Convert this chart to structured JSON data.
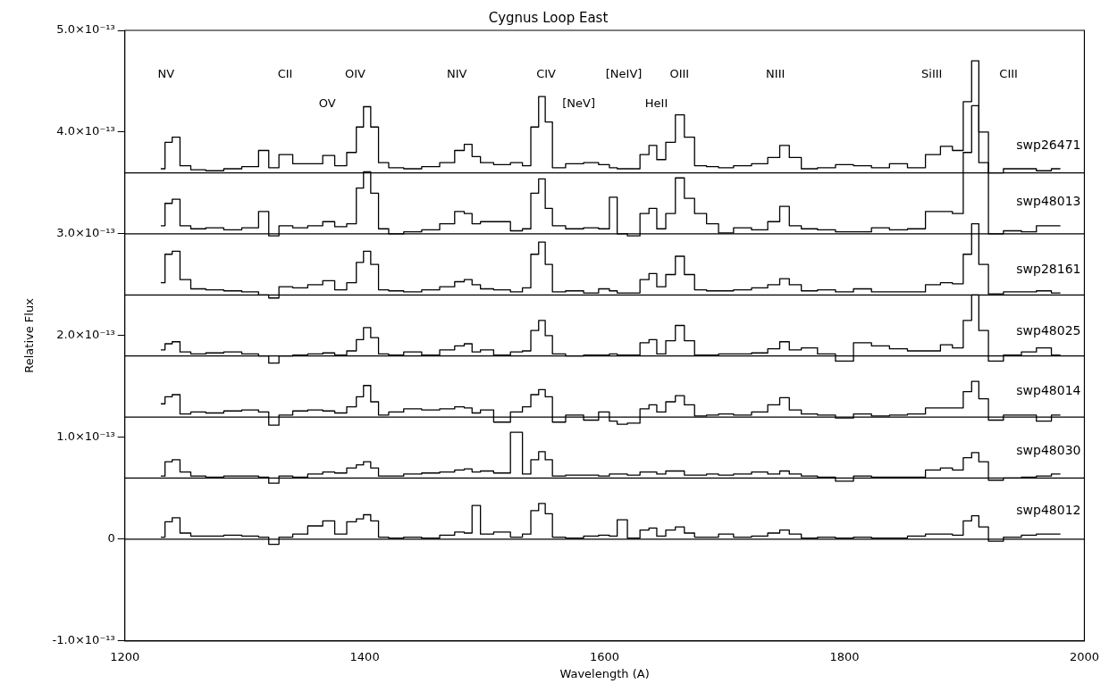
{
  "chart_data": {
    "type": "step",
    "title": "Cygnus Loop East",
    "xlabel": "Wavelength (A)",
    "ylabel": "Relative Flux",
    "xlim": [
      1200,
      2000
    ],
    "xticks": [
      1200,
      1400,
      1600,
      1800,
      2000
    ],
    "ylim": [
      -1e-13,
      5e-13
    ],
    "yticks": [
      {
        "value": -1e-13,
        "label": "-1.0×10⁻¹³"
      },
      0,
      {
        "value": 1e-13,
        "label": "1.0×10⁻¹³"
      },
      {
        "value": 2e-13,
        "label": "2.0×10⁻¹³"
      },
      {
        "value": 3e-13,
        "label": "3.0×10⁻¹³"
      },
      {
        "value": 4e-13,
        "label": "4.0×10⁻¹³"
      },
      {
        "value": 5e-13,
        "label": "5.0×10⁻¹³"
      }
    ],
    "grid": false,
    "legend": false,
    "x": [
      1230,
      1237,
      1242,
      1250,
      1260,
      1275,
      1290,
      1305,
      1318,
      1322,
      1335,
      1345,
      1360,
      1370,
      1380,
      1390,
      1396,
      1402,
      1408,
      1415,
      1425,
      1440,
      1455,
      1470,
      1480,
      1486,
      1493,
      1500,
      1515,
      1528,
      1535,
      1542,
      1548,
      1553,
      1560,
      1575,
      1590,
      1600,
      1608,
      1613,
      1625,
      1634,
      1640,
      1647,
      1655,
      1663,
      1670,
      1680,
      1690,
      1700,
      1715,
      1730,
      1742,
      1750,
      1758,
      1770,
      1785,
      1800,
      1815,
      1830,
      1845,
      1860,
      1875,
      1885,
      1895,
      1903,
      1909,
      1915,
      1925,
      1940,
      1955,
      1965,
      1980
    ],
    "series": [
      {
        "name": "swp26471",
        "color": "#000000",
        "values": [
          3.64e-13,
          3.9e-13,
          3.95e-13,
          3.67e-13,
          3.63e-13,
          3.62e-13,
          3.64e-13,
          3.66e-13,
          3.82e-13,
          3.65e-13,
          3.78e-13,
          3.69e-13,
          3.69e-13,
          3.77e-13,
          3.67e-13,
          3.8e-13,
          4.05e-13,
          4.25e-13,
          4.05e-13,
          3.7e-13,
          3.65e-13,
          3.64e-13,
          3.66e-13,
          3.7e-13,
          3.82e-13,
          3.88e-13,
          3.76e-13,
          3.7e-13,
          3.68e-13,
          3.7e-13,
          3.67e-13,
          4.05e-13,
          4.35e-13,
          4.1e-13,
          3.65e-13,
          3.69e-13,
          3.7e-13,
          3.68e-13,
          3.65e-13,
          3.64e-13,
          3.64e-13,
          3.78e-13,
          3.87e-13,
          3.73e-13,
          3.9e-13,
          4.17e-13,
          3.95e-13,
          3.67e-13,
          3.66e-13,
          3.65e-13,
          3.67e-13,
          3.69e-13,
          3.75e-13,
          3.87e-13,
          3.75e-13,
          3.64e-13,
          3.65e-13,
          3.68e-13,
          3.67e-13,
          3.65e-13,
          3.69e-13,
          3.65e-13,
          3.78e-13,
          3.86e-13,
          3.82e-13,
          4.3e-13,
          4.7e-13,
          4e-13,
          3.6e-13,
          3.64e-13,
          3.64e-13,
          3.62e-13,
          3.64e-13
        ]
      },
      {
        "name": "swp48013",
        "color": "#000000",
        "values": [
          3.08e-13,
          3.3e-13,
          3.34e-13,
          3.08e-13,
          3.05e-13,
          3.06e-13,
          3.04e-13,
          3.06e-13,
          3.22e-13,
          2.98e-13,
          3.08e-13,
          3.06e-13,
          3.08e-13,
          3.12e-13,
          3.07e-13,
          3.1e-13,
          3.45e-13,
          3.61e-13,
          3.4e-13,
          3.05e-13,
          3e-13,
          3.02e-13,
          3.04e-13,
          3.1e-13,
          3.22e-13,
          3.2e-13,
          3.1e-13,
          3.12e-13,
          3.12e-13,
          3.03e-13,
          3.05e-13,
          3.4e-13,
          3.54e-13,
          3.25e-13,
          3.08e-13,
          3.05e-13,
          3.06e-13,
          3.05e-13,
          3.36e-13,
          3e-13,
          2.98e-13,
          3.2e-13,
          3.25e-13,
          3.05e-13,
          3.2e-13,
          3.55e-13,
          3.35e-13,
          3.2e-13,
          3.1e-13,
          3.01e-13,
          3.06e-13,
          3.04e-13,
          3.12e-13,
          3.27e-13,
          3.08e-13,
          3.05e-13,
          3.04e-13,
          3.02e-13,
          3.02e-13,
          3.06e-13,
          3.04e-13,
          3.05e-13,
          3.22e-13,
          3.22e-13,
          3.2e-13,
          3.8e-13,
          4.26e-13,
          3.7e-13,
          3e-13,
          3.03e-13,
          3.02e-13,
          3.08e-13,
          3.08e-13
        ]
      },
      {
        "name": "swp28161",
        "color": "#000000",
        "values": [
          2.52e-13,
          2.8e-13,
          2.83e-13,
          2.55e-13,
          2.46e-13,
          2.45e-13,
          2.44e-13,
          2.43e-13,
          2.4e-13,
          2.37e-13,
          2.48e-13,
          2.47e-13,
          2.5e-13,
          2.54e-13,
          2.45e-13,
          2.52e-13,
          2.72e-13,
          2.83e-13,
          2.7e-13,
          2.45e-13,
          2.44e-13,
          2.43e-13,
          2.45e-13,
          2.48e-13,
          2.53e-13,
          2.55e-13,
          2.5e-13,
          2.46e-13,
          2.45e-13,
          2.43e-13,
          2.47e-13,
          2.8e-13,
          2.92e-13,
          2.7e-13,
          2.43e-13,
          2.44e-13,
          2.42e-13,
          2.46e-13,
          2.44e-13,
          2.42e-13,
          2.42e-13,
          2.55e-13,
          2.61e-13,
          2.48e-13,
          2.6e-13,
          2.78e-13,
          2.6e-13,
          2.45e-13,
          2.44e-13,
          2.44e-13,
          2.45e-13,
          2.47e-13,
          2.5e-13,
          2.56e-13,
          2.5e-13,
          2.44e-13,
          2.45e-13,
          2.43e-13,
          2.46e-13,
          2.43e-13,
          2.43e-13,
          2.43e-13,
          2.5e-13,
          2.52e-13,
          2.51e-13,
          2.8e-13,
          3.1e-13,
          2.7e-13,
          2.41e-13,
          2.43e-13,
          2.43e-13,
          2.44e-13,
          2.42e-13
        ]
      },
      {
        "name": "swp48025",
        "color": "#000000",
        "values": [
          1.86e-13,
          1.92e-13,
          1.94e-13,
          1.84e-13,
          1.82e-13,
          1.83e-13,
          1.84e-13,
          1.82e-13,
          1.8e-13,
          1.73e-13,
          1.8e-13,
          1.81e-13,
          1.82e-13,
          1.83e-13,
          1.81e-13,
          1.85e-13,
          1.96e-13,
          2.08e-13,
          1.98e-13,
          1.82e-13,
          1.81e-13,
          1.84e-13,
          1.81e-13,
          1.86e-13,
          1.9e-13,
          1.92e-13,
          1.84e-13,
          1.86e-13,
          1.81e-13,
          1.84e-13,
          1.85e-13,
          2.05e-13,
          2.15e-13,
          2e-13,
          1.82e-13,
          1.8e-13,
          1.81e-13,
          1.81e-13,
          1.82e-13,
          1.81e-13,
          1.81e-13,
          1.93e-13,
          1.96e-13,
          1.82e-13,
          1.95e-13,
          2.1e-13,
          1.95e-13,
          1.81e-13,
          1.81e-13,
          1.82e-13,
          1.82e-13,
          1.83e-13,
          1.87e-13,
          1.94e-13,
          1.86e-13,
          1.88e-13,
          1.82e-13,
          1.75e-13,
          1.93e-13,
          1.9e-13,
          1.87e-13,
          1.85e-13,
          1.85e-13,
          1.91e-13,
          1.88e-13,
          2.15e-13,
          2.4e-13,
          2.05e-13,
          1.75e-13,
          1.81e-13,
          1.84e-13,
          1.88e-13,
          1.81e-13
        ]
      },
      {
        "name": "swp48014",
        "color": "#000000",
        "values": [
          1.33e-13,
          1.4e-13,
          1.42e-13,
          1.23e-13,
          1.25e-13,
          1.24e-13,
          1.26e-13,
          1.27e-13,
          1.25e-13,
          1.12e-13,
          1.22e-13,
          1.26e-13,
          1.27e-13,
          1.26e-13,
          1.24e-13,
          1.3e-13,
          1.4e-13,
          1.51e-13,
          1.35e-13,
          1.22e-13,
          1.25e-13,
          1.28e-13,
          1.27e-13,
          1.28e-13,
          1.3e-13,
          1.29e-13,
          1.24e-13,
          1.27e-13,
          1.15e-13,
          1.25e-13,
          1.3e-13,
          1.42e-13,
          1.47e-13,
          1.4e-13,
          1.15e-13,
          1.22e-13,
          1.17e-13,
          1.25e-13,
          1.16e-13,
          1.13e-13,
          1.14e-13,
          1.28e-13,
          1.32e-13,
          1.25e-13,
          1.35e-13,
          1.41e-13,
          1.32e-13,
          1.21e-13,
          1.22e-13,
          1.23e-13,
          1.22e-13,
          1.25e-13,
          1.32e-13,
          1.39e-13,
          1.27e-13,
          1.23e-13,
          1.22e-13,
          1.19e-13,
          1.23e-13,
          1.21e-13,
          1.22e-13,
          1.23e-13,
          1.29e-13,
          1.29e-13,
          1.29e-13,
          1.45e-13,
          1.55e-13,
          1.38e-13,
          1.17e-13,
          1.22e-13,
          1.22e-13,
          1.16e-13,
          1.22e-13
        ]
      },
      {
        "name": "swp48030",
        "color": "#000000",
        "values": [
          6.2e-14,
          7.6e-14,
          7.8e-14,
          6.6e-14,
          6.2e-14,
          6.1e-14,
          6.2e-14,
          6.2e-14,
          6.1e-14,
          5.5e-14,
          6.2e-14,
          6.1e-14,
          6.4e-14,
          6.6e-14,
          6.5e-14,
          7e-14,
          7.3e-14,
          7.6e-14,
          7e-14,
          6.2e-14,
          6.2e-14,
          6.4e-14,
          6.5e-14,
          6.6e-14,
          6.8e-14,
          6.9e-14,
          6.6e-14,
          6.7e-14,
          6.5e-14,
          1.05e-13,
          6.4e-14,
          7.8e-14,
          8.6e-14,
          7.8e-14,
          6.2e-14,
          6.3e-14,
          6.3e-14,
          6.2e-14,
          6.4e-14,
          6.4e-14,
          6.3e-14,
          6.6e-14,
          6.6e-14,
          6.4e-14,
          6.7e-14,
          6.7e-14,
          6.3e-14,
          6.3e-14,
          6.4e-14,
          6.3e-14,
          6.4e-14,
          6.6e-14,
          6.4e-14,
          6.7e-14,
          6.4e-14,
          6.2e-14,
          6.1e-14,
          5.7e-14,
          6.2e-14,
          6.1e-14,
          6.1e-14,
          6.1e-14,
          6.8e-14,
          7e-14,
          6.8e-14,
          8e-14,
          8.5e-14,
          7.6e-14,
          5.8e-14,
          6e-14,
          6.1e-14,
          6.2e-14,
          6.4e-14
        ]
      },
      {
        "name": "swp48012",
        "color": "#000000",
        "values": [
          2e-15,
          1.7e-14,
          2.1e-14,
          6e-15,
          3e-15,
          3e-15,
          4e-15,
          3e-15,
          2e-15,
          -5e-15,
          2e-15,
          5e-15,
          1.3e-14,
          1.8e-14,
          5e-15,
          1.7e-14,
          2e-14,
          2.4e-14,
          1.8e-14,
          2e-15,
          1e-15,
          2e-15,
          1e-15,
          4e-15,
          7e-15,
          6e-15,
          3.3e-14,
          5e-15,
          7e-15,
          2e-15,
          5e-15,
          2.8e-14,
          3.5e-14,
          2.5e-14,
          2e-15,
          1e-15,
          3e-15,
          4e-15,
          3e-15,
          1.9e-14,
          1e-15,
          9e-15,
          1.1e-14,
          3e-15,
          9e-15,
          1.2e-14,
          6e-15,
          2e-15,
          2e-15,
          5e-15,
          2e-15,
          3e-15,
          6e-15,
          9e-15,
          5e-15,
          1e-15,
          2e-15,
          1e-15,
          2e-15,
          1e-15,
          1e-15,
          3e-15,
          5e-15,
          5e-15,
          4e-15,
          1.8e-14,
          2.3e-14,
          1.2e-14,
          -2e-15,
          2e-15,
          4e-15,
          5e-15,
          5e-15
        ]
      }
    ],
    "ref_lines": [
      {
        "axis": "y",
        "value": 3.6e-13,
        "color": "#000000"
      },
      {
        "axis": "y",
        "value": 3e-13,
        "color": "#000000"
      },
      {
        "axis": "y",
        "value": 2.4e-13,
        "color": "#000000"
      },
      {
        "axis": "y",
        "value": 1.8e-13,
        "color": "#000000"
      },
      {
        "axis": "y",
        "value": 1.2e-13,
        "color": "#000000"
      },
      {
        "axis": "y",
        "value": 6e-14,
        "color": "#000000"
      },
      {
        "axis": "y",
        "value": 0,
        "color": "#000000"
      }
    ],
    "annotations": [
      "NV",
      "CII",
      "OV",
      "OIV",
      "NIV",
      "CIV",
      "[NeV]",
      "[NeIV]",
      "HeII",
      "OIII",
      "NIII",
      "SiIII",
      "CIII"
    ]
  }
}
